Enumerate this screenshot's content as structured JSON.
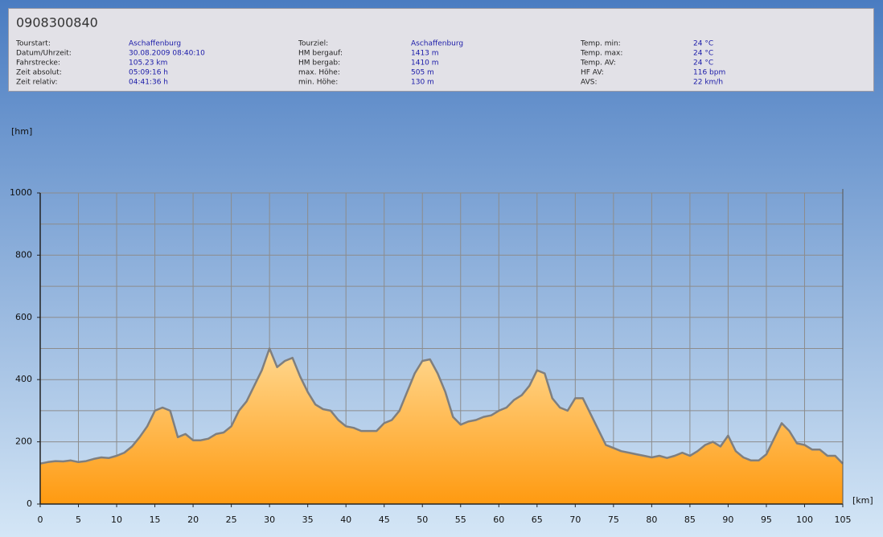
{
  "header": {
    "title": "0908300840",
    "columns": [
      {
        "rows": [
          {
            "label": "Tourstart:",
            "value": "Aschaffenburg"
          },
          {
            "label": "Datum/Uhrzeit:",
            "value": "30.08.2009 08:40:10"
          },
          {
            "label": "Fahrstrecke:",
            "value": "105.23 km"
          },
          {
            "label": "Zeit absolut:",
            "value": "05:09:16 h"
          },
          {
            "label": "Zeit relativ:",
            "value": "04:41:36 h"
          }
        ]
      },
      {
        "rows": [
          {
            "label": "Tourziel:",
            "value": "Aschaffenburg"
          },
          {
            "label": "HM bergauf:",
            "value": "1413 m"
          },
          {
            "label": "HM bergab:",
            "value": "1410 m"
          },
          {
            "label": "max. Höhe:",
            "value": "505 m"
          },
          {
            "label": "min. Höhe:",
            "value": "130 m"
          }
        ]
      },
      {
        "rows": [
          {
            "label": "Temp. min:",
            "value": "24 °C"
          },
          {
            "label": "Temp. max:",
            "value": "24 °C"
          },
          {
            "label": "Temp. AV:",
            "value": "24 °C"
          },
          {
            "label": "HF AV:",
            "value": "116 bpm"
          },
          {
            "label": "AVS:",
            "value": "22 km/h"
          }
        ]
      }
    ]
  },
  "chart_data": {
    "type": "area",
    "y_label": "[hm]",
    "x_label": "[km]",
    "color": "#ff9a10",
    "line_color": "#7f7f7f",
    "grid": true,
    "xlim": [
      0,
      105
    ],
    "ylim": [
      0,
      1000
    ],
    "xticks": [
      0,
      5,
      10,
      15,
      20,
      25,
      30,
      35,
      40,
      45,
      50,
      55,
      60,
      65,
      70,
      75,
      80,
      85,
      90,
      95,
      100,
      105
    ],
    "yticks": [
      0,
      200,
      400,
      600,
      800,
      1000
    ],
    "y_minor_ticks": [
      100,
      300,
      500,
      700,
      900
    ],
    "x": [
      0,
      1,
      2,
      3,
      4,
      5,
      6,
      7,
      8,
      9,
      10,
      11,
      12,
      13,
      14,
      15,
      16,
      17,
      18,
      19,
      20,
      21,
      22,
      23,
      24,
      25,
      26,
      27,
      28,
      29,
      30,
      31,
      32,
      33,
      34,
      35,
      36,
      37,
      38,
      39,
      40,
      41,
      42,
      43,
      44,
      45,
      46,
      47,
      48,
      49,
      50,
      51,
      52,
      53,
      54,
      55,
      56,
      57,
      58,
      59,
      60,
      61,
      62,
      63,
      64,
      65,
      66,
      67,
      68,
      69,
      70,
      71,
      72,
      73,
      74,
      75,
      76,
      77,
      78,
      79,
      80,
      81,
      82,
      83,
      84,
      85,
      86,
      87,
      88,
      89,
      90,
      91,
      92,
      93,
      94,
      95,
      96,
      97,
      98,
      99,
      100,
      101,
      102,
      103,
      104,
      105
    ],
    "values": [
      130,
      135,
      138,
      137,
      140,
      135,
      138,
      145,
      150,
      148,
      155,
      165,
      185,
      215,
      250,
      300,
      310,
      300,
      215,
      225,
      205,
      205,
      210,
      225,
      230,
      250,
      300,
      330,
      380,
      430,
      500,
      440,
      460,
      470,
      410,
      360,
      320,
      305,
      300,
      270,
      250,
      245,
      235,
      235,
      235,
      260,
      270,
      300,
      360,
      420,
      460,
      465,
      420,
      360,
      280,
      255,
      265,
      270,
      280,
      285,
      300,
      310,
      335,
      350,
      380,
      430,
      420,
      340,
      310,
      300,
      340,
      340,
      290,
      240,
      190,
      180,
      170,
      165,
      160,
      155,
      150,
      155,
      148,
      155,
      165,
      155,
      170,
      190,
      200,
      185,
      220,
      170,
      150,
      140,
      140,
      160,
      210,
      260,
      235,
      195,
      190,
      175,
      175,
      155,
      155,
      130
    ]
  }
}
